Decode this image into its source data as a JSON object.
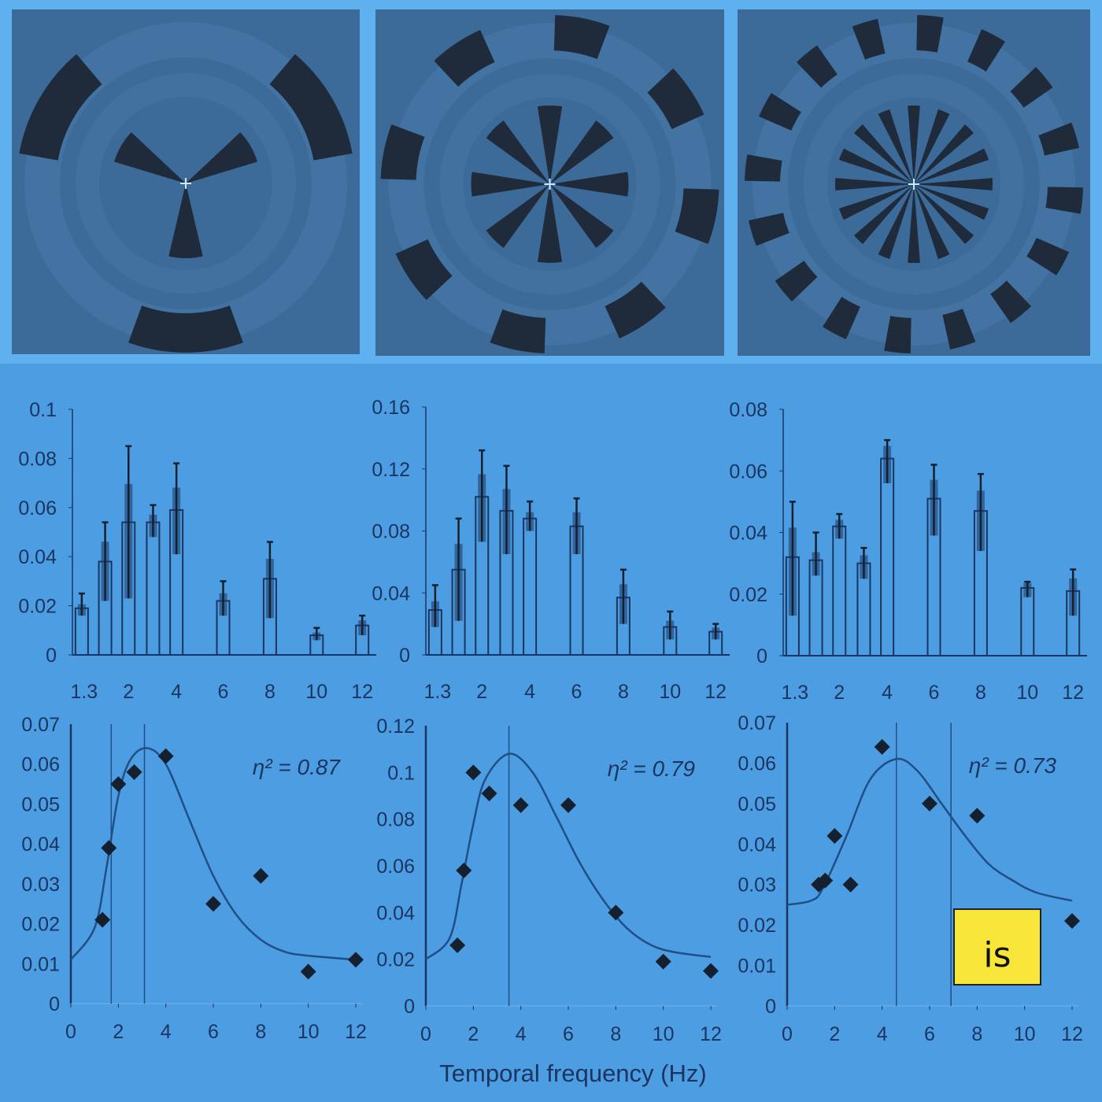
{
  "colors": {
    "background": "#4d9de2",
    "top_strip": "#5fb0ef",
    "stimulus_panel": "#3c6b99",
    "stimulus_light": "#4878a8",
    "stimulus_dark": "#1f2b3a",
    "axis": "#1b3560",
    "marker": "#15202e",
    "fit_line": "#1f4f86",
    "badge": "#f7e53a"
  },
  "stimuli": [
    {
      "inner_wedges": 3,
      "outer_segments": 3
    },
    {
      "inner_wedges": 8,
      "outer_segments": 8
    },
    {
      "inner_wedges": 16,
      "outer_segments": 16
    }
  ],
  "chart_data": [
    {
      "type": "bar",
      "x": [
        1.33,
        1.6,
        2,
        2.67,
        4,
        6,
        8,
        10,
        12
      ],
      "values": [
        0.019,
        0.038,
        0.054,
        0.054,
        0.059,
        0.022,
        0.031,
        0.008,
        0.012
      ],
      "error_low": [
        0.016,
        0.022,
        0.023,
        0.048,
        0.041,
        0.016,
        0.015,
        0.006,
        0.008
      ],
      "error_high": [
        0.025,
        0.054,
        0.085,
        0.061,
        0.078,
        0.03,
        0.046,
        0.011,
        0.016
      ],
      "xtick_labels": [
        "1.3",
        "2",
        "4",
        "6",
        "8",
        "10",
        "12"
      ],
      "ytick_labels": [
        "0",
        "0.02",
        "0.04",
        "0.06",
        "0.08",
        "0.1"
      ],
      "ylim": [
        0,
        0.1
      ]
    },
    {
      "type": "bar",
      "x": [
        1.33,
        1.6,
        2,
        2.67,
        4,
        6,
        8,
        10,
        12
      ],
      "values": [
        0.029,
        0.055,
        0.102,
        0.093,
        0.088,
        0.083,
        0.037,
        0.018,
        0.015
      ],
      "error_low": [
        0.018,
        0.022,
        0.073,
        0.065,
        0.08,
        0.065,
        0.02,
        0.01,
        0.01
      ],
      "error_high": [
        0.045,
        0.088,
        0.132,
        0.122,
        0.099,
        0.101,
        0.055,
        0.028,
        0.02
      ],
      "xtick_labels": [
        "1.3",
        "2",
        "4",
        "6",
        "8",
        "10",
        "12"
      ],
      "ytick_labels": [
        "0",
        "0.04",
        "0.08",
        "0.12",
        "0.16"
      ],
      "ylim": [
        0,
        0.16
      ]
    },
    {
      "type": "bar",
      "x": [
        1.33,
        1.6,
        2,
        2.67,
        4,
        6,
        8,
        10,
        12
      ],
      "values": [
        0.032,
        0.031,
        0.042,
        0.03,
        0.064,
        0.051,
        0.047,
        0.022,
        0.021
      ],
      "error_low": [
        0.013,
        0.026,
        0.038,
        0.025,
        0.056,
        0.039,
        0.034,
        0.019,
        0.013
      ],
      "error_high": [
        0.05,
        0.04,
        0.046,
        0.035,
        0.07,
        0.062,
        0.059,
        0.024,
        0.028
      ],
      "xtick_labels": [
        "1.3",
        "2",
        "4",
        "6",
        "8",
        "10",
        "12"
      ],
      "ytick_labels": [
        "0",
        "0.02",
        "0.04",
        "0.06",
        "0.08"
      ],
      "ylim": [
        0,
        0.08
      ]
    },
    {
      "type": "scatter",
      "x": [
        1.33,
        1.6,
        2,
        2.67,
        4,
        6,
        8,
        10,
        12
      ],
      "y": [
        0.021,
        0.039,
        0.055,
        0.058,
        0.062,
        0.025,
        0.032,
        0.008,
        0.011
      ],
      "fit_curve": [
        [
          0,
          0.011
        ],
        [
          1,
          0.019
        ],
        [
          1.5,
          0.034
        ],
        [
          2,
          0.052
        ],
        [
          2.5,
          0.061
        ],
        [
          3.2,
          0.064
        ],
        [
          4,
          0.06
        ],
        [
          5,
          0.046
        ],
        [
          6,
          0.032
        ],
        [
          7,
          0.022
        ],
        [
          8,
          0.016
        ],
        [
          9,
          0.013
        ],
        [
          10,
          0.012
        ],
        [
          12,
          0.011
        ]
      ],
      "reference_lines_x": [
        1.7,
        3.1
      ],
      "annotation": "η² = 0.87",
      "xtick_labels": [
        "0",
        "2",
        "4",
        "6",
        "8",
        "10",
        "12"
      ],
      "ytick_labels": [
        "0",
        "0.01",
        "0.02",
        "0.03",
        "0.04",
        "0.05",
        "0.06",
        "0.07"
      ],
      "xlim": [
        0,
        12
      ],
      "ylim": [
        0,
        0.07
      ]
    },
    {
      "type": "scatter",
      "x": [
        1.33,
        1.6,
        2,
        2.67,
        4,
        6,
        8,
        10,
        12
      ],
      "y": [
        0.026,
        0.058,
        0.1,
        0.091,
        0.086,
        0.086,
        0.04,
        0.019,
        0.015
      ],
      "fit_curve": [
        [
          0,
          0.02
        ],
        [
          1,
          0.029
        ],
        [
          1.5,
          0.052
        ],
        [
          2,
          0.078
        ],
        [
          2.5,
          0.097
        ],
        [
          3.5,
          0.108
        ],
        [
          4.5,
          0.1
        ],
        [
          5.5,
          0.081
        ],
        [
          6.5,
          0.061
        ],
        [
          7.5,
          0.045
        ],
        [
          8.5,
          0.033
        ],
        [
          9.5,
          0.026
        ],
        [
          10.5,
          0.023
        ],
        [
          12,
          0.021
        ]
      ],
      "reference_lines_x": [
        3.5
      ],
      "annotation": "η² = 0.79",
      "xtick_labels": [
        "0",
        "2",
        "4",
        "6",
        "8",
        "10",
        "12"
      ],
      "ytick_labels": [
        "0",
        "0.02",
        "0.04",
        "0.06",
        "0.08",
        "0.1",
        "0.12"
      ],
      "xlim": [
        0,
        12
      ],
      "ylim": [
        0,
        0.12
      ]
    },
    {
      "type": "scatter",
      "x": [
        1.33,
        1.6,
        2,
        2.67,
        4,
        6,
        8,
        12
      ],
      "y": [
        0.03,
        0.031,
        0.042,
        0.03,
        0.064,
        0.05,
        0.047,
        0.021
      ],
      "fit_curve": [
        [
          0,
          0.025
        ],
        [
          1,
          0.026
        ],
        [
          1.5,
          0.029
        ],
        [
          2.5,
          0.042
        ],
        [
          3.5,
          0.056
        ],
        [
          4.6,
          0.061
        ],
        [
          5.5,
          0.058
        ],
        [
          6.5,
          0.05
        ],
        [
          7.5,
          0.042
        ],
        [
          8.5,
          0.035
        ],
        [
          9.5,
          0.031
        ],
        [
          10.5,
          0.028
        ],
        [
          12,
          0.026
        ]
      ],
      "reference_lines_x": [
        4.6,
        6.9
      ],
      "annotation": "η² = 0.73",
      "xtick_labels": [
        "0",
        "2",
        "4",
        "6",
        "8",
        "10",
        "12"
      ],
      "ytick_labels": [
        "0",
        "0.01",
        "0.02",
        "0.03",
        "0.04",
        "0.05",
        "0.06",
        "0.07"
      ],
      "xlim": [
        0,
        12
      ],
      "ylim": [
        0,
        0.07
      ]
    }
  ],
  "xlabel": "Temporal frequency (Hz)",
  "badge": {
    "text": "is"
  }
}
